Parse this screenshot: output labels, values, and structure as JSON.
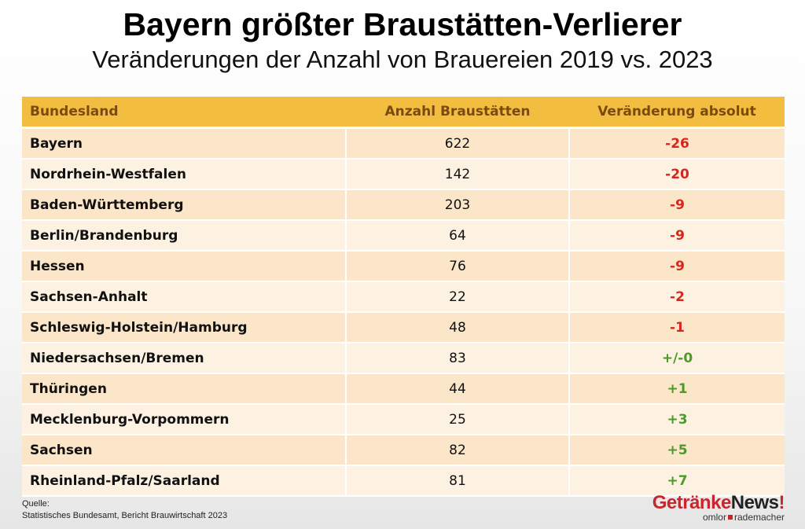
{
  "title": "Bayern größter Braustätten-Verlierer",
  "subtitle": "Veränderungen der Anzahl von Brauereien 2019 vs. 2023",
  "chart_data": {
    "type": "table",
    "columns": [
      "Bundesland",
      "Anzahl Braustätten",
      "Veränderung absolut"
    ],
    "rows": [
      [
        "Bayern",
        "622",
        "-26"
      ],
      [
        "Nordrhein-Westfalen",
        "142",
        "-20"
      ],
      [
        "Baden-Württemberg",
        "203",
        "-9"
      ],
      [
        "Berlin/Brandenburg",
        "64",
        "-9"
      ],
      [
        "Hessen",
        "76",
        "-9"
      ],
      [
        "Sachsen-Anhalt",
        "22",
        "-2"
      ],
      [
        "Schleswig-Holstein/Hamburg",
        "48",
        "-1"
      ],
      [
        "Niedersachsen/Bremen",
        "83",
        "+/-0"
      ],
      [
        "Thüringen",
        "44",
        "+1"
      ],
      [
        "Mecklenburg-Vorpommern",
        "25",
        "+3"
      ],
      [
        "Sachsen",
        "82",
        "+5"
      ],
      [
        "Rheinland-Pfalz/Saarland",
        "81",
        "+7"
      ]
    ],
    "colors": {
      "header": "#f3be3f",
      "row_odd": "#fbe6c9",
      "row_even": "#fdf2e2",
      "negative": "#d7261c",
      "positive": "#4c9a2a"
    }
  },
  "source": {
    "label": "Quelle:",
    "text": "Statistisches Bundesamt, Bericht Brauwirtschaft 2023"
  },
  "logo": {
    "part1": "Getränke",
    "part2": "News",
    "bang": "!",
    "sub1": "omlor",
    "sub2": "rademacher"
  }
}
